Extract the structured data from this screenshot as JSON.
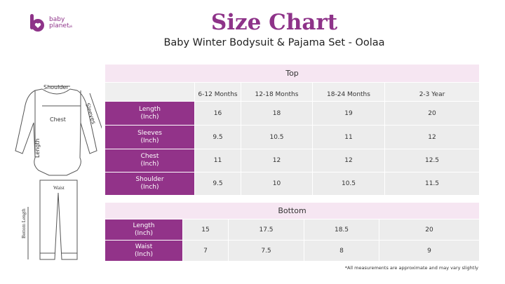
{
  "brand": {
    "line1": "baby",
    "line2": "planet",
    "suffix": "pk"
  },
  "title": "Size Chart",
  "subtitle": "Baby Winter Bodysuit & Pajama Set - Oolaa",
  "illustration": {
    "shoulder": "Shoulder",
    "chest": "Chest",
    "sleeves": "Sleeves",
    "length": "Length",
    "waist": "Waist",
    "bottom_length": "Bottom Length"
  },
  "top": {
    "caption": "Top",
    "columns": [
      "6-12 Months",
      "12-18 Months",
      "18-24  Months",
      "2-3 Year"
    ],
    "rows": [
      {
        "label": "Length",
        "unit": "(Inch)",
        "values": [
          "16",
          "18",
          "19",
          "20"
        ]
      },
      {
        "label": "Sleeves",
        "unit": "(Inch)",
        "values": [
          "9.5",
          "10.5",
          "11",
          "12"
        ]
      },
      {
        "label": "Chest",
        "unit": "(Inch)",
        "values": [
          "11",
          "12",
          "12",
          "12.5"
        ]
      },
      {
        "label": "Shoulder",
        "unit": "(Inch)",
        "values": [
          "9.5",
          "10",
          "10.5",
          "11.5"
        ]
      }
    ]
  },
  "bottom": {
    "caption": "Bottom",
    "rows": [
      {
        "label": "Length",
        "unit": "(Inch)",
        "values": [
          "15",
          "17.5",
          "18.5",
          "20"
        ]
      },
      {
        "label": "Waist",
        "unit": "(Inch)",
        "values": [
          "7",
          "7.5",
          "8",
          "9"
        ]
      }
    ]
  },
  "footnote": "*All measurements are approximate and may vary slightly",
  "colors": {
    "accent": "#923389",
    "caption_bg": "#f6e6f2",
    "cell_bg": "#ececec"
  }
}
